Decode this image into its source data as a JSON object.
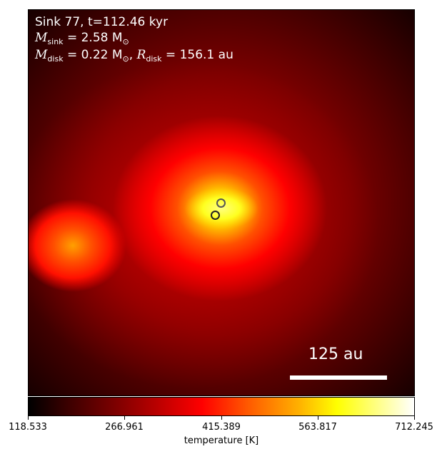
{
  "annotation": {
    "line1": "Sink 77, t=112.46 kyr",
    "msink_symbol": "M",
    "msink_sub": "sink",
    "msink_value": " = 2.58 M",
    "msink_unit_sub": "⊙",
    "mdisk_symbol": "M",
    "mdisk_sub": "disk",
    "mdisk_value": " = 0.22 M",
    "mdisk_unit_sub": "⊙",
    "rdisk_sep": ", ",
    "rdisk_symbol": "R",
    "rdisk_sub": "disk",
    "rdisk_value": " = 156.1 au"
  },
  "scale_bar": {
    "label": "125 au"
  },
  "colorbar": {
    "label": "temperature [K]",
    "colormap": "hot",
    "min": 118.533,
    "max": 712.245,
    "ticks": [
      "118.533",
      "266.961",
      "415.389",
      "563.817",
      "712.245"
    ]
  },
  "sinks": [
    {
      "name": "sink-1",
      "edge_color": "#555555"
    },
    {
      "name": "sink-2",
      "edge_color": "#222222"
    }
  ]
}
